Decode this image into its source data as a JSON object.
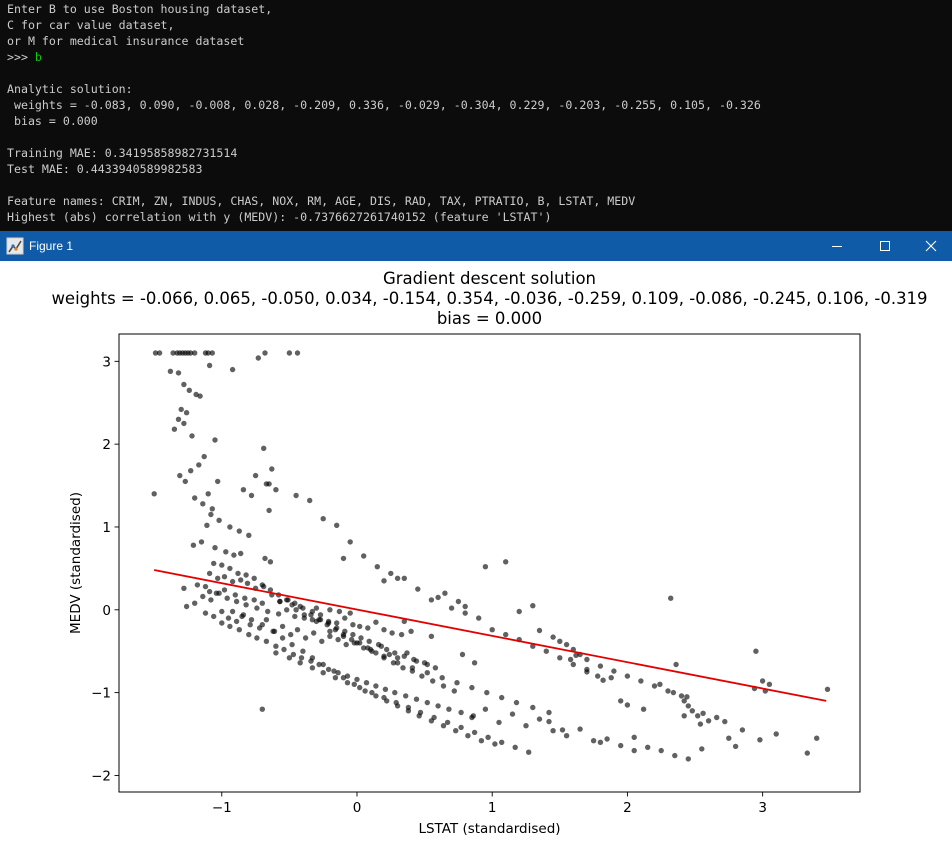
{
  "console": {
    "lines": [
      {
        "text": "Enter B to use Boston housing dataset,"
      },
      {
        "text": "C for car value dataset,"
      },
      {
        "text": "or M for medical insurance dataset"
      },
      {
        "prompt": ">>> ",
        "input": "b"
      },
      {
        "text": ""
      },
      {
        "text": "Analytic solution:"
      },
      {
        "text": " weights = -0.083, 0.090, -0.008, 0.028, -0.209, 0.336, -0.029, -0.304, 0.229, -0.203, -0.255, 0.105, -0.326"
      },
      {
        "text": " bias = 0.000"
      },
      {
        "text": ""
      },
      {
        "text": "Training MAE: 0.34195858982731514"
      },
      {
        "text": "Test MAE: 0.4433940589982583"
      },
      {
        "text": ""
      },
      {
        "text": "Feature names: CRIM, ZN, INDUS, CHAS, NOX, RM, AGE, DIS, RAD, TAX, PTRATIO, B, LSTAT, MEDV"
      },
      {
        "text": "Highest (abs) correlation with y (MEDV): -0.7376627261740152 (feature 'LSTAT')"
      }
    ],
    "input_color": "#13c613"
  },
  "window": {
    "title": "Figure 1",
    "titlebar_color": "#0f5ba8",
    "icons": {
      "app": "matplotlib-figure-icon",
      "minimize": "minimize-icon",
      "maximize": "maximize-icon",
      "close": "close-icon"
    }
  },
  "chart_data": {
    "type": "scatter",
    "title_lines": [
      "Gradient descent solution",
      "weights = -0.066, 0.065, -0.050, 0.034, -0.154, 0.354, -0.036, -0.259, 0.109, -0.086, -0.245, 0.106, -0.319",
      "bias = 0.000"
    ],
    "xlabel": "LSTAT (standardised)",
    "ylabel": "MEDV (standardised)",
    "xlim": [
      -1.76,
      3.72
    ],
    "ylim": [
      -2.2,
      3.33
    ],
    "xticks": [
      -1,
      0,
      1,
      2,
      3
    ],
    "xtick_labels": [
      "−1",
      "0",
      "1",
      "2",
      "3"
    ],
    "yticks": [
      -2,
      -1,
      0,
      1,
      2,
      3
    ],
    "ytick_labels": [
      "−2",
      "−1",
      "0",
      "1",
      "2",
      "3"
    ],
    "point_color": "#000000",
    "point_alpha": 0.62,
    "line_color": "#e30000",
    "fit_line": {
      "x": [
        -1.5,
        3.47
      ],
      "y": [
        0.48,
        -1.1
      ]
    },
    "points": {
      "x": [
        -1.49,
        -1.46,
        -1.36,
        -1.33,
        -1.31,
        -1.29,
        -1.27,
        -1.25,
        -1.23,
        -1.2,
        -1.12,
        -1.1,
        -1.07,
        -0.68,
        -0.5,
        -0.44,
        -1.38,
        -1.32,
        -1.28,
        -1.24,
        -1.19,
        -1.16,
        -1.09,
        -0.92,
        -0.73,
        -1.3,
        -1.26,
        -1.32,
        -1.28,
        -1.35,
        -1.22,
        -1.05,
        -0.69,
        -1.5,
        -1.31,
        -1.27,
        -1.23,
        -1.13,
        -1.17,
        -1.03,
        -0.84,
        -0.63,
        -0.67,
        -0.78,
        -1.2,
        -1.14,
        -1.08,
        -1.11,
        -1.1,
        -1.07,
        -1.02,
        -0.94,
        -0.87,
        -0.8,
        -1.21,
        -1.15,
        -1.05,
        -0.97,
        -0.91,
        -0.86,
        -0.68,
        -0.64,
        -1.28,
        -1.18,
        -1.12,
        -1.09,
        -1.04,
        -0.98,
        -0.9,
        -0.83,
        -0.76,
        -0.7,
        -0.57,
        -0.48,
        -0.42,
        -0.3,
        -0.2,
        -0.13,
        -0.05,
        -1.26,
        -1.2,
        -1.14,
        -1.08,
        -1.02,
        -0.96,
        -0.89,
        -0.82,
        -0.74,
        -0.66,
        -0.58,
        -0.52,
        -0.46,
        -0.39,
        -0.33,
        -0.27,
        -0.21,
        -0.15,
        -0.09,
        -0.03,
        0.02,
        0.08,
        0.14,
        0.2,
        0.26,
        0.33,
        0.4,
        -1.12,
        -1.06,
        -1.0,
        -0.95,
        -0.89,
        -0.84,
        -0.79,
        -0.72,
        -0.67,
        -0.61,
        -0.55,
        -0.49,
        -0.44,
        -0.38,
        -0.32,
        -0.26,
        -0.2,
        -0.14,
        -0.08,
        -0.02,
        0.05,
        0.11,
        0.18,
        0.24,
        0.3,
        0.37,
        0.44,
        0.52,
        -1.09,
        -1.03,
        -0.98,
        -0.92,
        -0.86,
        -0.81,
        -0.75,
        -0.69,
        -0.63,
        -0.57,
        -0.51,
        -0.45,
        -0.39,
        -0.33,
        -0.27,
        -0.21,
        -0.15,
        -0.09,
        -0.03,
        0.03,
        0.09,
        0.16,
        0.22,
        0.28,
        0.35,
        0.42,
        0.5,
        0.58,
        -1.06,
        -1.0,
        -0.94,
        -0.88,
        -0.82,
        -0.76,
        -0.7,
        -0.64,
        -0.58,
        -0.52,
        -0.46,
        -0.4,
        -0.34,
        -0.28,
        -0.22,
        -0.16,
        -0.1,
        -0.04,
        0.02,
        0.08,
        0.14,
        0.2,
        0.27,
        0.34,
        0.41,
        0.48,
        0.56,
        0.64,
        0.72,
        -1.0,
        -0.94,
        -0.87,
        -0.8,
        -0.74,
        -0.67,
        -0.6,
        -0.54,
        -0.47,
        -0.41,
        -0.34,
        -0.28,
        -0.21,
        -0.14,
        -0.07,
        0.0,
        0.07,
        0.14,
        0.21,
        0.28,
        0.36,
        0.44,
        0.52,
        0.6,
        0.68,
        0.77,
        0.86,
        -0.92,
        -0.85,
        -0.78,
        -0.7,
        -0.62,
        -0.55,
        -0.48,
        -0.4,
        -0.33,
        -0.25,
        -0.17,
        -0.1,
        -0.02,
        0.06,
        0.14,
        0.22,
        0.3,
        0.38,
        0.46,
        0.55,
        0.64,
        0.73,
        0.82,
        0.92,
        1.02,
        -0.7,
        -0.6,
        -0.5,
        -0.42,
        -0.33,
        -0.25,
        -0.16,
        -0.07,
        0.02,
        0.11,
        0.2,
        0.29,
        0.38,
        0.47,
        0.57,
        0.67,
        0.77,
        0.87,
        0.97,
        1.07,
        1.17,
        1.27,
        -0.3,
        -0.2,
        -0.1,
        0.0,
        0.1,
        0.2,
        0.3,
        0.41,
        0.52,
        0.63,
        0.74,
        0.85,
        0.96,
        1.07,
        1.18,
        1.3,
        1.42,
        -0.65,
        -0.1,
        0.2,
        0.3,
        0.45,
        0.55,
        0.6,
        0.7,
        0.8,
        0.9,
        1.0,
        1.1,
        1.2,
        1.3,
        1.4,
        1.5,
        1.6,
        1.7,
        0.85,
        0.95,
        1.05,
        1.15,
        1.25,
        1.35,
        1.45,
        1.55,
        1.65,
        1.75,
        1.85,
        1.95,
        2.05,
        2.15,
        2.25,
        2.35,
        2.45,
        2.55,
        -0.75,
        -0.65,
        -0.6,
        -0.45,
        -0.35,
        -0.25,
        -0.15,
        -0.05,
        0.05,
        0.15,
        0.25,
        0.35,
        0.65,
        0.75,
        0.8,
        0.95,
        1.1,
        1.2,
        1.3,
        1.35,
        1.45,
        1.5,
        1.55,
        1.6,
        1.65,
        1.7,
        1.8,
        1.9,
        2.0,
        2.1,
        2.2,
        2.3,
        2.4,
        2.42,
        2.45,
        2.48,
        2.52,
        2.6,
        2.95,
        3.0,
        3.05,
        3.48,
        0.35,
        0.55,
        0.78,
        0.87,
        1.42,
        1.52,
        1.8,
        2.05,
        2.32,
        2.36,
        2.42,
        2.54,
        2.75,
        2.8,
        2.94,
        2.98,
        3.02,
        3.33,
        1.58,
        1.62,
        1.7,
        1.78,
        1.82,
        1.88,
        1.95,
        2.0,
        2.12,
        2.24,
        2.34,
        2.44,
        2.56,
        2.66,
        2.72,
        2.85,
        3.1,
        3.4
      ],
      "y": [
        3.1,
        3.1,
        3.1,
        3.1,
        3.1,
        3.1,
        3.1,
        3.1,
        3.1,
        3.1,
        3.1,
        3.1,
        3.1,
        3.1,
        3.1,
        3.1,
        2.88,
        2.86,
        2.72,
        2.65,
        2.6,
        2.58,
        2.95,
        2.9,
        3.04,
        2.42,
        2.38,
        2.3,
        2.25,
        2.18,
        2.1,
        2.05,
        1.95,
        1.4,
        1.62,
        1.55,
        1.68,
        1.85,
        1.75,
        1.55,
        1.45,
        1.7,
        1.52,
        1.38,
        1.35,
        1.28,
        1.15,
        1.02,
        1.4,
        1.22,
        1.08,
        1.0,
        0.95,
        0.9,
        0.78,
        0.82,
        0.75,
        0.7,
        0.66,
        0.68,
        0.62,
        0.58,
        0.26,
        0.3,
        0.28,
        0.22,
        0.2,
        0.24,
        0.18,
        0.14,
        0.12,
        0.08,
        0.1,
        0.06,
        0.04,
        0.02,
        0.0,
        -0.02,
        -0.04,
        0.04,
        0.08,
        0.16,
        0.12,
        0.2,
        0.14,
        0.1,
        0.06,
        0.02,
        -0.02,
        -0.05,
        0.0,
        -0.08,
        -0.1,
        -0.12,
        -0.06,
        -0.14,
        -0.16,
        -0.1,
        -0.18,
        -0.2,
        -0.22,
        -0.15,
        -0.24,
        -0.28,
        -0.3,
        -0.26,
        -0.04,
        -0.08,
        -0.02,
        -0.1,
        -0.14,
        -0.06,
        -0.18,
        -0.22,
        -0.12,
        -0.26,
        -0.2,
        -0.3,
        -0.24,
        -0.34,
        -0.28,
        -0.38,
        -0.32,
        -0.36,
        -0.42,
        -0.4,
        -0.46,
        -0.5,
        -0.44,
        -0.54,
        -0.58,
        -0.52,
        -0.62,
        -0.66,
        0.44,
        0.38,
        0.4,
        0.34,
        0.36,
        0.32,
        0.26,
        0.28,
        0.18,
        0.1,
        0.12,
        0.0,
        -0.06,
        -0.02,
        -0.12,
        -0.16,
        -0.22,
        -0.26,
        -0.3,
        -0.34,
        -0.38,
        -0.42,
        -0.48,
        -0.52,
        -0.56,
        -0.6,
        -0.64,
        -0.7,
        0.56,
        0.54,
        0.5,
        0.44,
        0.42,
        0.38,
        0.3,
        0.24,
        0.18,
        0.12,
        0.08,
        0.02,
        -0.06,
        -0.12,
        -0.18,
        -0.24,
        -0.3,
        -0.36,
        -0.4,
        -0.46,
        -0.52,
        -0.58,
        -0.64,
        -0.7,
        -0.74,
        -0.8,
        -0.86,
        -0.92,
        -0.98,
        -0.16,
        -0.2,
        -0.24,
        -0.3,
        -0.34,
        -0.38,
        -0.44,
        -0.48,
        -0.54,
        -0.58,
        -0.62,
        -0.66,
        -0.72,
        -0.76,
        -0.8,
        -0.84,
        -0.88,
        -0.92,
        -0.96,
        -1.0,
        -1.04,
        -1.08,
        -1.12,
        -1.16,
        -1.2,
        -1.24,
        -1.28,
        -0.02,
        -0.08,
        -0.12,
        -0.18,
        -0.26,
        -0.34,
        -0.42,
        -0.5,
        -0.58,
        -0.66,
        -0.74,
        -0.82,
        -0.9,
        -0.98,
        -1.04,
        -1.1,
        -1.16,
        -1.22,
        -1.28,
        -1.34,
        -1.4,
        -1.46,
        -1.52,
        -1.58,
        -1.62,
        -1.2,
        -0.52,
        -0.58,
        -0.64,
        -0.7,
        -0.76,
        -0.82,
        -0.88,
        -0.94,
        -1.0,
        -1.06,
        -1.12,
        -1.18,
        -1.24,
        -1.3,
        -1.36,
        -1.42,
        -1.48,
        -1.54,
        -1.6,
        -1.66,
        -1.72,
        -0.14,
        -0.26,
        -0.32,
        -0.4,
        -0.48,
        -0.56,
        -0.64,
        -0.7,
        -0.76,
        -0.82,
        -0.88,
        -0.94,
        -1.0,
        -1.06,
        -1.12,
        -1.18,
        -1.24,
        1.2,
        0.62,
        0.35,
        0.38,
        0.25,
        0.12,
        0.15,
        0.02,
        -0.04,
        -0.1,
        -0.24,
        -0.3,
        -0.36,
        -0.44,
        -0.5,
        -0.58,
        -0.66,
        -0.72,
        -1.3,
        -1.2,
        -1.36,
        -1.26,
        -1.4,
        -1.32,
        -1.46,
        -1.52,
        -1.44,
        -1.58,
        -1.56,
        -1.64,
        -1.54,
        -1.66,
        -1.7,
        -1.76,
        -1.8,
        -1.68,
        1.62,
        1.52,
        1.45,
        1.38,
        1.32,
        1.1,
        1.02,
        0.82,
        0.65,
        0.52,
        0.44,
        0.38,
        0.2,
        0.1,
        0.04,
        0.52,
        0.58,
        -0.02,
        0.05,
        -0.25,
        -0.33,
        -0.38,
        -0.42,
        -0.48,
        -0.54,
        -0.6,
        -0.68,
        -0.74,
        -0.8,
        -0.86,
        -0.92,
        -0.98,
        -1.04,
        -1.1,
        -1.16,
        -1.22,
        -1.28,
        -1.34,
        -0.5,
        -0.86,
        -0.9,
        -0.96,
        -0.14,
        -0.32,
        -0.54,
        -0.64,
        -1.35,
        -1.45,
        -1.6,
        -1.7,
        0.14,
        -0.66,
        -1.28,
        -1.38,
        -1.55,
        -1.65,
        -0.95,
        -1.57,
        -0.98,
        -1.73,
        -0.6,
        -0.55,
        -0.75,
        -0.8,
        -0.85,
        -0.82,
        -1.1,
        -1.15,
        -1.2,
        -0.9,
        -1.0,
        -1.05,
        -1.25,
        -1.3,
        -1.35,
        -1.45,
        -1.5,
        -1.55
      ]
    }
  }
}
